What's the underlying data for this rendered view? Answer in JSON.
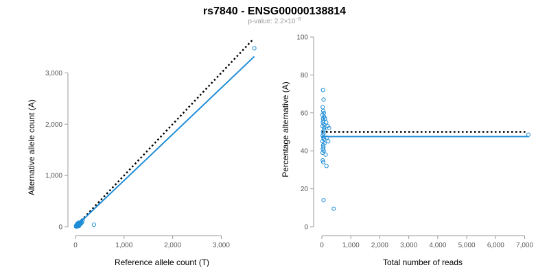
{
  "figure": {
    "title": "rs7840 - ENSG00000138814",
    "subtitle_prefix": "p-value: 2.2×10",
    "subtitle_exponent": "−8"
  },
  "colors": {
    "points": "#1f8dd6",
    "fit_line": "#1f8dd6",
    "reference_line": "#000000",
    "axis": "#9a9a9a"
  },
  "chart_data": [
    {
      "type": "scatter",
      "xlabel": "Reference allele count (T)",
      "ylabel": "Alternative allele count (A)",
      "xlim": [
        0,
        3700
      ],
      "ylim": [
        0,
        3700
      ],
      "xticks": [
        0,
        1000,
        2000,
        3000
      ],
      "xtick_labels": [
        "0",
        "1,000",
        "2,000",
        "3,000"
      ],
      "yticks": [
        0,
        1000,
        2000,
        3000
      ],
      "ytick_labels": [
        "0",
        "1,000",
        "2,000",
        "3,000"
      ],
      "points": [
        [
          10,
          5
        ],
        [
          15,
          20
        ],
        [
          20,
          10
        ],
        [
          25,
          30
        ],
        [
          30,
          15
        ],
        [
          35,
          40
        ],
        [
          40,
          25
        ],
        [
          45,
          50
        ],
        [
          50,
          35
        ],
        [
          55,
          60
        ],
        [
          60,
          20
        ],
        [
          65,
          45
        ],
        [
          70,
          55
        ],
        [
          75,
          30
        ],
        [
          80,
          70
        ],
        [
          85,
          40
        ],
        [
          90,
          65
        ],
        [
          95,
          50
        ],
        [
          100,
          85
        ],
        [
          110,
          60
        ],
        [
          120,
          100
        ],
        [
          130,
          80
        ],
        [
          30,
          5
        ],
        [
          50,
          8
        ],
        [
          70,
          12
        ],
        [
          20,
          35
        ],
        [
          40,
          60
        ],
        [
          60,
          80
        ],
        [
          150,
          130
        ],
        [
          380,
          40
        ],
        [
          3680,
          3480
        ]
      ],
      "fit_line": {
        "x": [
          0,
          3680
        ],
        "y": [
          0,
          3320
        ]
      },
      "reference_line": {
        "x": [
          0,
          3650
        ],
        "y": [
          0,
          3650
        ]
      }
    },
    {
      "type": "scatter",
      "xlabel": "Total number of reads",
      "ylabel": "Percentage alternative (A)",
      "xlim": [
        0,
        7200
      ],
      "ylim": [
        0,
        100
      ],
      "xticks": [
        0,
        1000,
        2000,
        3000,
        4000,
        5000,
        6000,
        7000
      ],
      "xtick_labels": [
        "0",
        "1,000",
        "2,000",
        "3,000",
        "4,000",
        "5,000",
        "6,000",
        "7,000"
      ],
      "yticks": [
        0,
        20,
        40,
        60,
        80,
        100
      ],
      "ytick_labels": [
        "0",
        "20",
        "40",
        "60",
        "80",
        "100"
      ],
      "points": [
        [
          40,
          72
        ],
        [
          60,
          67
        ],
        [
          30,
          63
        ],
        [
          50,
          61
        ],
        [
          70,
          60
        ],
        [
          20,
          59
        ],
        [
          80,
          58
        ],
        [
          45,
          57
        ],
        [
          55,
          56
        ],
        [
          35,
          55
        ],
        [
          65,
          54
        ],
        [
          25,
          53
        ],
        [
          75,
          52
        ],
        [
          85,
          51
        ],
        [
          40,
          50
        ],
        [
          60,
          49
        ],
        [
          30,
          48
        ],
        [
          50,
          47
        ],
        [
          70,
          46
        ],
        [
          20,
          45
        ],
        [
          90,
          44
        ],
        [
          45,
          43
        ],
        [
          55,
          42
        ],
        [
          35,
          41
        ],
        [
          65,
          40
        ],
        [
          25,
          39
        ],
        [
          110,
          57
        ],
        [
          150,
          55
        ],
        [
          200,
          53
        ],
        [
          250,
          52
        ],
        [
          180,
          47
        ],
        [
          220,
          45
        ],
        [
          130,
          38
        ],
        [
          160,
          32
        ],
        [
          30,
          35
        ],
        [
          50,
          34
        ],
        [
          60,
          14
        ],
        [
          410,
          9.5
        ],
        [
          7130,
          48.5
        ]
      ],
      "fit_line": {
        "x": [
          0,
          7150
        ],
        "y": [
          47.5,
          47.5
        ]
      },
      "reference_line": {
        "x": [
          0,
          7100
        ],
        "y": [
          50,
          50
        ]
      }
    }
  ]
}
